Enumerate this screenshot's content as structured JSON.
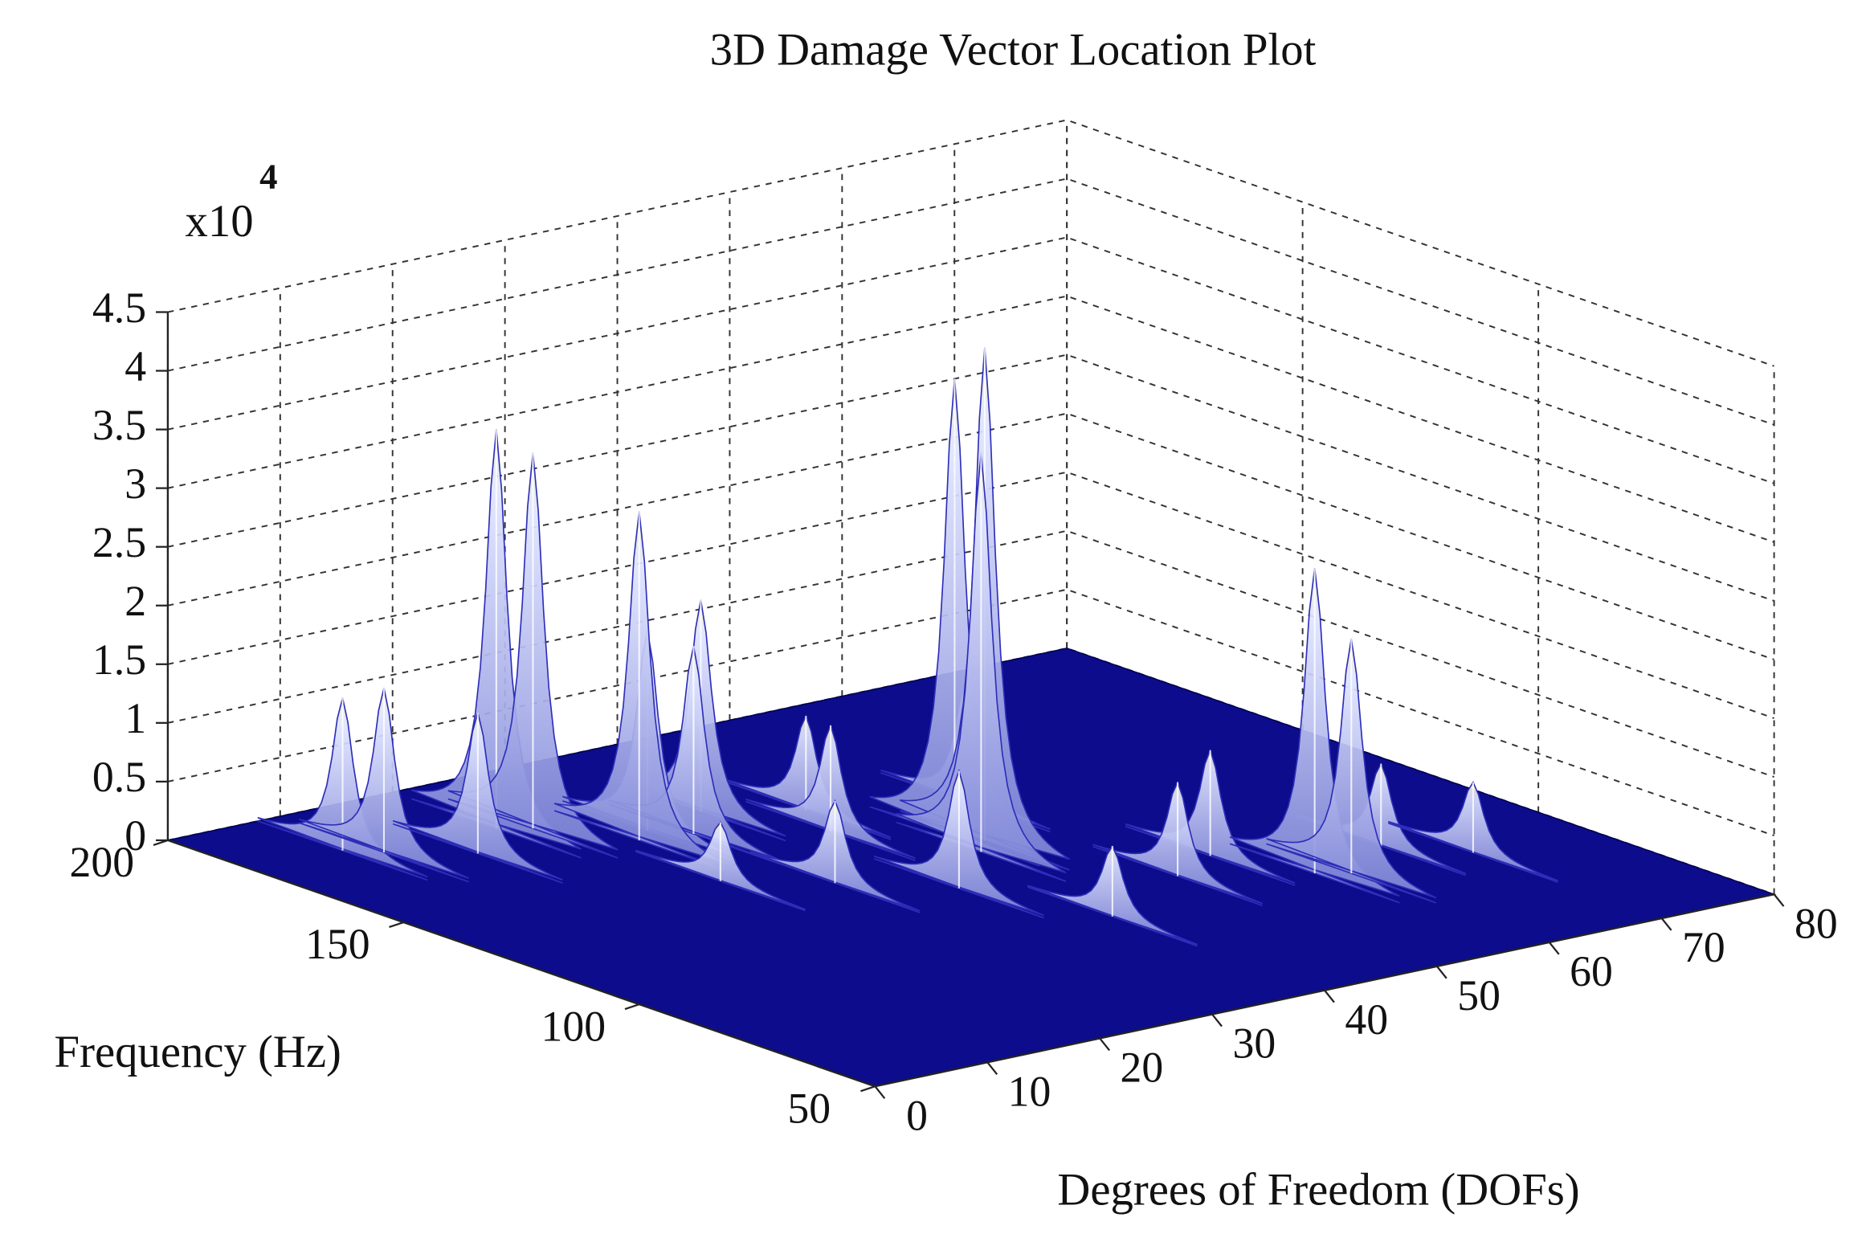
{
  "chart_data": {
    "type": "spikes3d",
    "title": "3D Damage Vector Location Plot",
    "xlabel": "Degrees of Freedom (DOFs)",
    "ylabel": "Frequency (Hz)",
    "z_multiplier": "x10",
    "z_exponent": "4",
    "xlim": [
      0,
      80
    ],
    "xticks": [
      0,
      10,
      20,
      30,
      40,
      50,
      60,
      70,
      80
    ],
    "ylim": [
      50,
      200
    ],
    "yticks": [
      50,
      100,
      150,
      200
    ],
    "zlim": [
      0,
      4.5
    ],
    "zticks": [
      0,
      0.5,
      1,
      1.5,
      2,
      2.5,
      3,
      3.5,
      4,
      4.5
    ],
    "grid": true,
    "floor_color": "#0c0c8c",
    "color": "#c9cdf2",
    "x": [
      8,
      10,
      15,
      20,
      22,
      26,
      28,
      30,
      34,
      38,
      40,
      45,
      44,
      43,
      50,
      36,
      30,
      50,
      55,
      58,
      60,
      66,
      70,
      24,
      40
    ],
    "y": [
      182,
      178,
      170,
      178,
      175,
      162,
      165,
      160,
      168,
      150,
      160,
      134,
      138,
      130,
      150,
      118,
      130,
      105,
      110,
      95,
      92,
      100,
      90,
      140,
      95
    ],
    "values": [
      1.3,
      1.4,
      1.2,
      3.4,
      3.2,
      2.8,
      1.7,
      1.6,
      1.8,
      0.9,
      0.8,
      4.2,
      3.9,
      3.4,
      1.0,
      1.0,
      0.7,
      0.8,
      0.9,
      2.6,
      2.0,
      0.7,
      0.6,
      0.5,
      0.6
    ]
  }
}
